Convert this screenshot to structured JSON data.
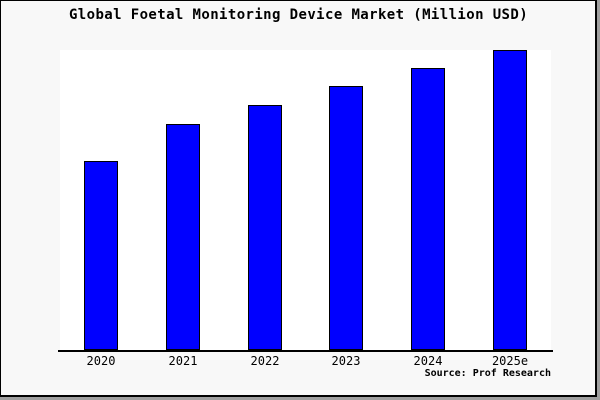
{
  "header": {
    "title": "Global Foetal Monitoring Device Market (Million USD)"
  },
  "footer": {
    "source": "Source: Prof Research"
  },
  "colors": {
    "bar_fill": "#0000ff",
    "bar_border": "#000000",
    "background": "#f8f8f8",
    "plot_background": "#ffffff",
    "axis": "#000000",
    "frame_shadow": "#9f9f9f"
  },
  "chart_data": {
    "type": "bar",
    "title": "Global Foetal Monitoring Device Market (Million USD)",
    "categories": [
      "2020",
      "2021",
      "2022",
      "2023",
      "2024",
      "2025e"
    ],
    "values": [
      189,
      226,
      245,
      264,
      282,
      300
    ],
    "values_note": "Y axis has no tick labels or gridlines; values are relative bar heights (pixels) read from the chart",
    "xlabel": "",
    "ylabel": "",
    "ylim": [
      0,
      300
    ],
    "grid": false,
    "legend": false,
    "single_series_color": "#0000ff",
    "source": "Source: Prof Research"
  }
}
